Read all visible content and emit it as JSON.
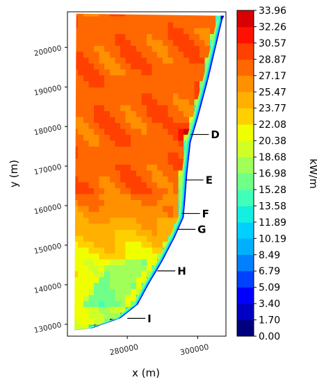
{
  "chart_data": {
    "type": "heatmap",
    "title": "",
    "xlabel": "x (m)",
    "ylabel": "y (m)",
    "xlim": [
      263000,
      308000
    ],
    "ylim": [
      127000,
      209000
    ],
    "x_ticks": [
      280000,
      300000
    ],
    "y_ticks": [
      130000,
      140000,
      150000,
      160000,
      170000,
      180000,
      190000,
      200000
    ],
    "colorbar": {
      "label": "kW/m",
      "levels": [
        0.0,
        1.7,
        3.4,
        5.09,
        6.79,
        8.49,
        10.19,
        11.89,
        13.58,
        15.28,
        16.98,
        18.68,
        20.38,
        22.08,
        23.77,
        25.47,
        27.17,
        28.87,
        30.57,
        32.26,
        33.96
      ],
      "colors": [
        "#00007f",
        "#0000c4",
        "#0000ff",
        "#0040ff",
        "#0080ff",
        "#00b0ff",
        "#00d0ff",
        "#14f0e0",
        "#40ffb8",
        "#70ff88",
        "#a0ff58",
        "#d0ff28",
        "#f0ff00",
        "#ffd000",
        "#ffb000",
        "#ff9000",
        "#ff6800",
        "#ff4000",
        "#ff1000",
        "#d80000"
      ]
    },
    "annotations": [
      {
        "label": "D",
        "x": 298000,
        "y": 178000
      },
      {
        "label": "E",
        "x": 296500,
        "y": 166500
      },
      {
        "label": "F",
        "x": 295500,
        "y": 158000
      },
      {
        "label": "G",
        "x": 294200,
        "y": 154000
      },
      {
        "label": "H",
        "x": 288500,
        "y": 143500
      },
      {
        "label": "I",
        "x": 280000,
        "y": 131500
      }
    ]
  }
}
